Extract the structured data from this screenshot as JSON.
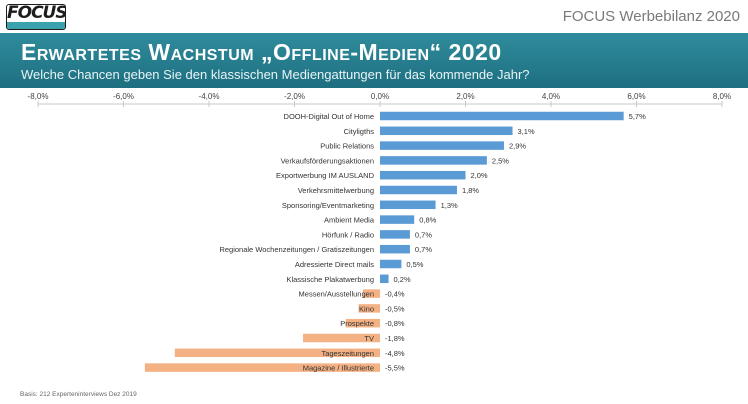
{
  "header": {
    "logo_text": "FOCUS",
    "brand": "FOCUS Werbebilanz 2020",
    "title": "Erwartetes Wachstum „Offline-Medien“ 2020",
    "subtitle": "Welche Chancen geben Sie den klassischen Mediengattungen für das kommende Jahr?"
  },
  "footnote": "Basis: 212 Experteninterviews Dez 2019",
  "colors": {
    "positive": "#5b9bd5",
    "negative": "#f4b183",
    "banner": "#267d8d"
  },
  "chart_data": {
    "type": "bar",
    "orientation": "horizontal",
    "title": "Erwartetes Wachstum „Offline-Medien“ 2020",
    "xlim": [
      -8,
      8
    ],
    "x_ticks": [
      "-8,0%",
      "-6,0%",
      "-4,0%",
      "-2,0%",
      "0,0%",
      "2,0%",
      "4,0%",
      "6,0%",
      "8,0%"
    ],
    "grid": false,
    "categories": [
      "DOOH-Digital Out of Home",
      "Cityligths",
      "Public Relations",
      "Verkaufsförderungsaktionen",
      "Exportwerbung IM AUSLAND",
      "Verkehrsmittelwerbung",
      "Sponsoring/Eventmarketing",
      "Ambient Media",
      "Hörfunk / Radio",
      "Regionale Wochenzeitungen / Gratiszeitungen",
      "Adressierte Direct mails",
      "Klassische Plakatwerbung",
      "Messen/Ausstellungen",
      "Kino",
      "Prospekte",
      "TV",
      "Tageszeitungen",
      "Magazine / Illustrierte"
    ],
    "values": [
      5.7,
      3.1,
      2.9,
      2.5,
      2.0,
      1.8,
      1.3,
      0.8,
      0.7,
      0.7,
      0.5,
      0.2,
      -0.4,
      -0.5,
      -0.8,
      -1.8,
      -4.8,
      -5.5
    ],
    "value_labels": [
      "5,7%",
      "3,1%",
      "2,9%",
      "2,5%",
      "2,0%",
      "1,8%",
      "1,3%",
      "0,8%",
      "0,7%",
      "0,7%",
      "0,5%",
      "0,2%",
      "-0,4%",
      "-0,5%",
      "-0,8%",
      "-1,8%",
      "-4,8%",
      "-5,5%"
    ]
  }
}
